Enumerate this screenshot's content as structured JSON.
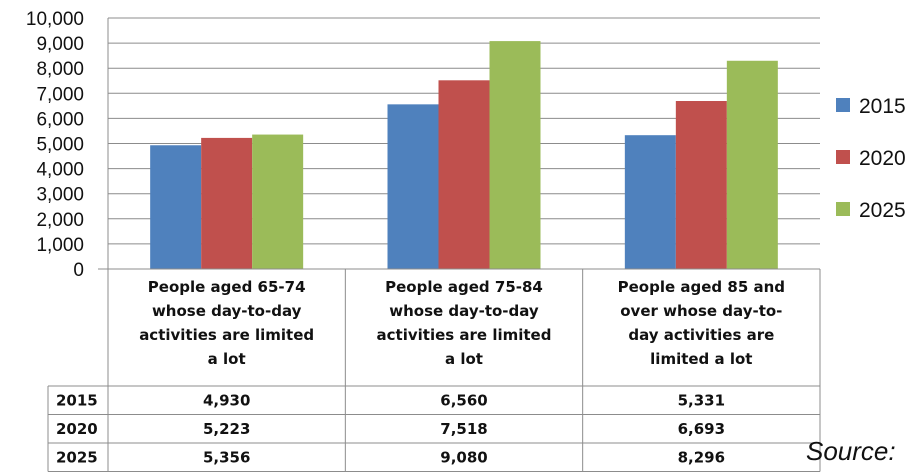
{
  "chart_data": {
    "type": "bar",
    "categories": [
      [
        "People aged 65-74",
        "whose day-to-day",
        "activities are limited",
        "a lot"
      ],
      [
        "People aged 75-84",
        "whose day-to-day",
        "activities are limited",
        "a lot"
      ],
      [
        "People aged 85 and",
        "over whose day-to-",
        "day activities are",
        "limited a lot"
      ]
    ],
    "series": [
      {
        "name": "2015",
        "color": "#4F81BD",
        "values": [
          4930,
          6560,
          5331
        ],
        "labels": [
          "4,930",
          "6,560",
          "5,331"
        ]
      },
      {
        "name": "2020",
        "color": "#C0504D",
        "values": [
          5223,
          7518,
          6693
        ],
        "labels": [
          "5,223",
          "7,518",
          "6,693"
        ]
      },
      {
        "name": "2025",
        "color": "#9BBB59",
        "values": [
          5356,
          9080,
          8296
        ],
        "labels": [
          "5,356",
          "9,080",
          "8,296"
        ]
      }
    ],
    "ylim": [
      0,
      10000
    ],
    "yticks": [
      "0",
      "1,000",
      "2,000",
      "3,000",
      "4,000",
      "5,000",
      "6,000",
      "7,000",
      "8,000",
      "9,000",
      "10,000"
    ],
    "grid": true,
    "legend": "right",
    "data_table": true
  },
  "source_label": "Source:"
}
